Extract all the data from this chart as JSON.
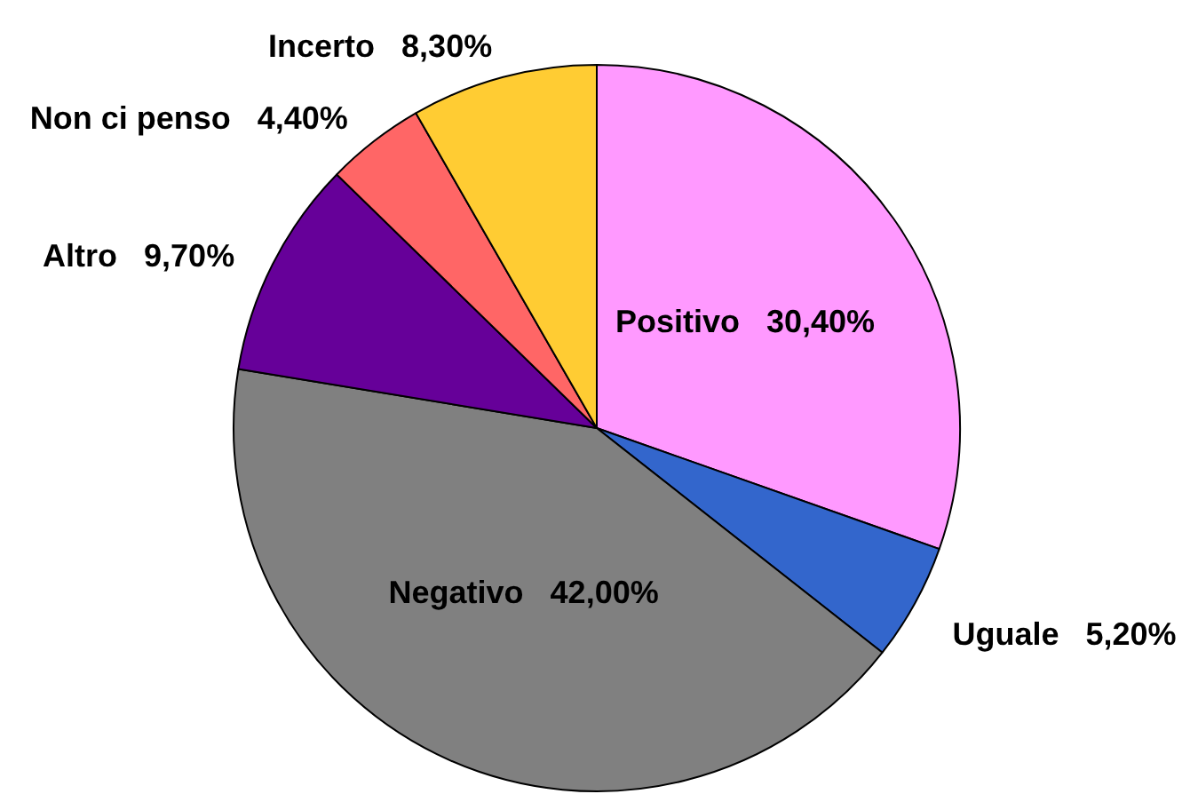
{
  "chart_data": {
    "type": "pie",
    "categories": [
      "Positivo",
      "Uguale",
      "Negativo",
      "Altro",
      "Non ci penso",
      "Incerto"
    ],
    "values": [
      30.4,
      5.2,
      42.0,
      9.7,
      4.4,
      8.3
    ],
    "colors": [
      "#ff99ff",
      "#3366cc",
      "#808080",
      "#660099",
      "#ff6666",
      "#ffcc33"
    ],
    "value_labels": [
      "30,40%",
      "5,20%",
      "42,00%",
      "9,70%",
      "4,40%",
      "8,30%"
    ]
  }
}
